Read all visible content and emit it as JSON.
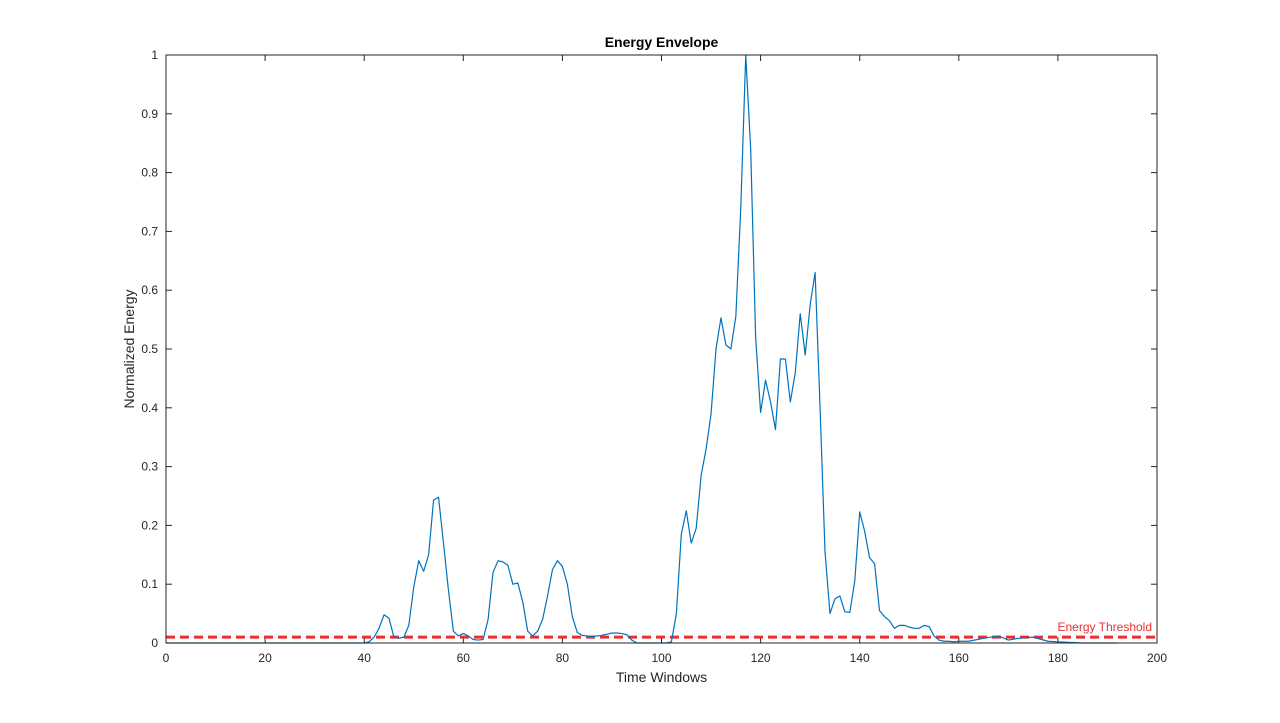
{
  "chart_data": {
    "type": "line",
    "title": "Energy Envelope",
    "xlabel": "Time Windows",
    "ylabel": "Normalized Energy",
    "xlim": [
      0,
      200
    ],
    "ylim": [
      0,
      1
    ],
    "xticks": [
      "0",
      "20",
      "40",
      "60",
      "80",
      "100",
      "120",
      "140",
      "160",
      "180",
      "200"
    ],
    "yticks": [
      "0",
      "0.1",
      "0.2",
      "0.3",
      "0.4",
      "0.5",
      "0.6",
      "0.7",
      "0.8",
      "0.9",
      "1"
    ],
    "grid": false,
    "series": [
      {
        "color": "#0072BD",
        "x": [
          0,
          40,
          41,
          42,
          43,
          44,
          45,
          46,
          47,
          48,
          49,
          50,
          51,
          52,
          53,
          54,
          55,
          56,
          57,
          58,
          59,
          60,
          61,
          62,
          63,
          64,
          65,
          66,
          67,
          68,
          69,
          70,
          71,
          72,
          73,
          74,
          75,
          76,
          77,
          78,
          79,
          80,
          81,
          82,
          83,
          84,
          85,
          86,
          87,
          88,
          89,
          90,
          91,
          92,
          93,
          94,
          95,
          96,
          97,
          98,
          99,
          100,
          101,
          102,
          103,
          104,
          105,
          106,
          107,
          108,
          109,
          110,
          111,
          112,
          113,
          114,
          115,
          116,
          117,
          118,
          119,
          120,
          121,
          122,
          123,
          124,
          125,
          126,
          127,
          128,
          129,
          130,
          131,
          132,
          133,
          134,
          135,
          136,
          137,
          138,
          139,
          140,
          141,
          142,
          143,
          144,
          145,
          146,
          147,
          148,
          149,
          150,
          151,
          152,
          153,
          154,
          155,
          156,
          157,
          158,
          159,
          160,
          162,
          165,
          168,
          170,
          172,
          175,
          178,
          180,
          185,
          190,
          192
        ],
        "y": [
          0,
          0,
          0.002,
          0.01,
          0.025,
          0.048,
          0.042,
          0.01,
          0.008,
          0.01,
          0.03,
          0.095,
          0.14,
          0.122,
          0.15,
          0.243,
          0.248,
          0.17,
          0.09,
          0.02,
          0.012,
          0.016,
          0.012,
          0.006,
          0.005,
          0.006,
          0.04,
          0.12,
          0.14,
          0.138,
          0.132,
          0.1,
          0.102,
          0.07,
          0.02,
          0.012,
          0.02,
          0.04,
          0.08,
          0.125,
          0.14,
          0.13,
          0.1,
          0.045,
          0.018,
          0.013,
          0.012,
          0.011,
          0.012,
          0.013,
          0.015,
          0.017,
          0.017,
          0.016,
          0.014,
          0.005,
          0.0,
          0.0,
          0.0,
          0.0,
          0.0,
          0.0,
          0.0,
          0.002,
          0.05,
          0.185,
          0.225,
          0.17,
          0.195,
          0.285,
          0.33,
          0.39,
          0.5,
          0.553,
          0.507,
          0.5,
          0.555,
          0.74,
          1.0,
          0.84,
          0.52,
          0.392,
          0.447,
          0.41,
          0.363,
          0.483,
          0.483,
          0.41,
          0.46,
          0.56,
          0.49,
          0.575,
          0.63,
          0.4,
          0.155,
          0.05,
          0.075,
          0.08,
          0.053,
          0.052,
          0.105,
          0.223,
          0.19,
          0.145,
          0.135,
          0.055,
          0.045,
          0.038,
          0.025,
          0.03,
          0.03,
          0.027,
          0.025,
          0.025,
          0.03,
          0.028,
          0.012,
          0.005,
          0.003,
          0.003,
          0.002,
          0.003,
          0.003,
          0.008,
          0.012,
          0.005,
          0.008,
          0.01,
          0.003,
          0.002,
          0.0,
          0.0,
          0.0
        ]
      }
    ],
    "threshold": {
      "label": "Energy Threshold",
      "value": 0.01,
      "color": "#E83030"
    }
  }
}
